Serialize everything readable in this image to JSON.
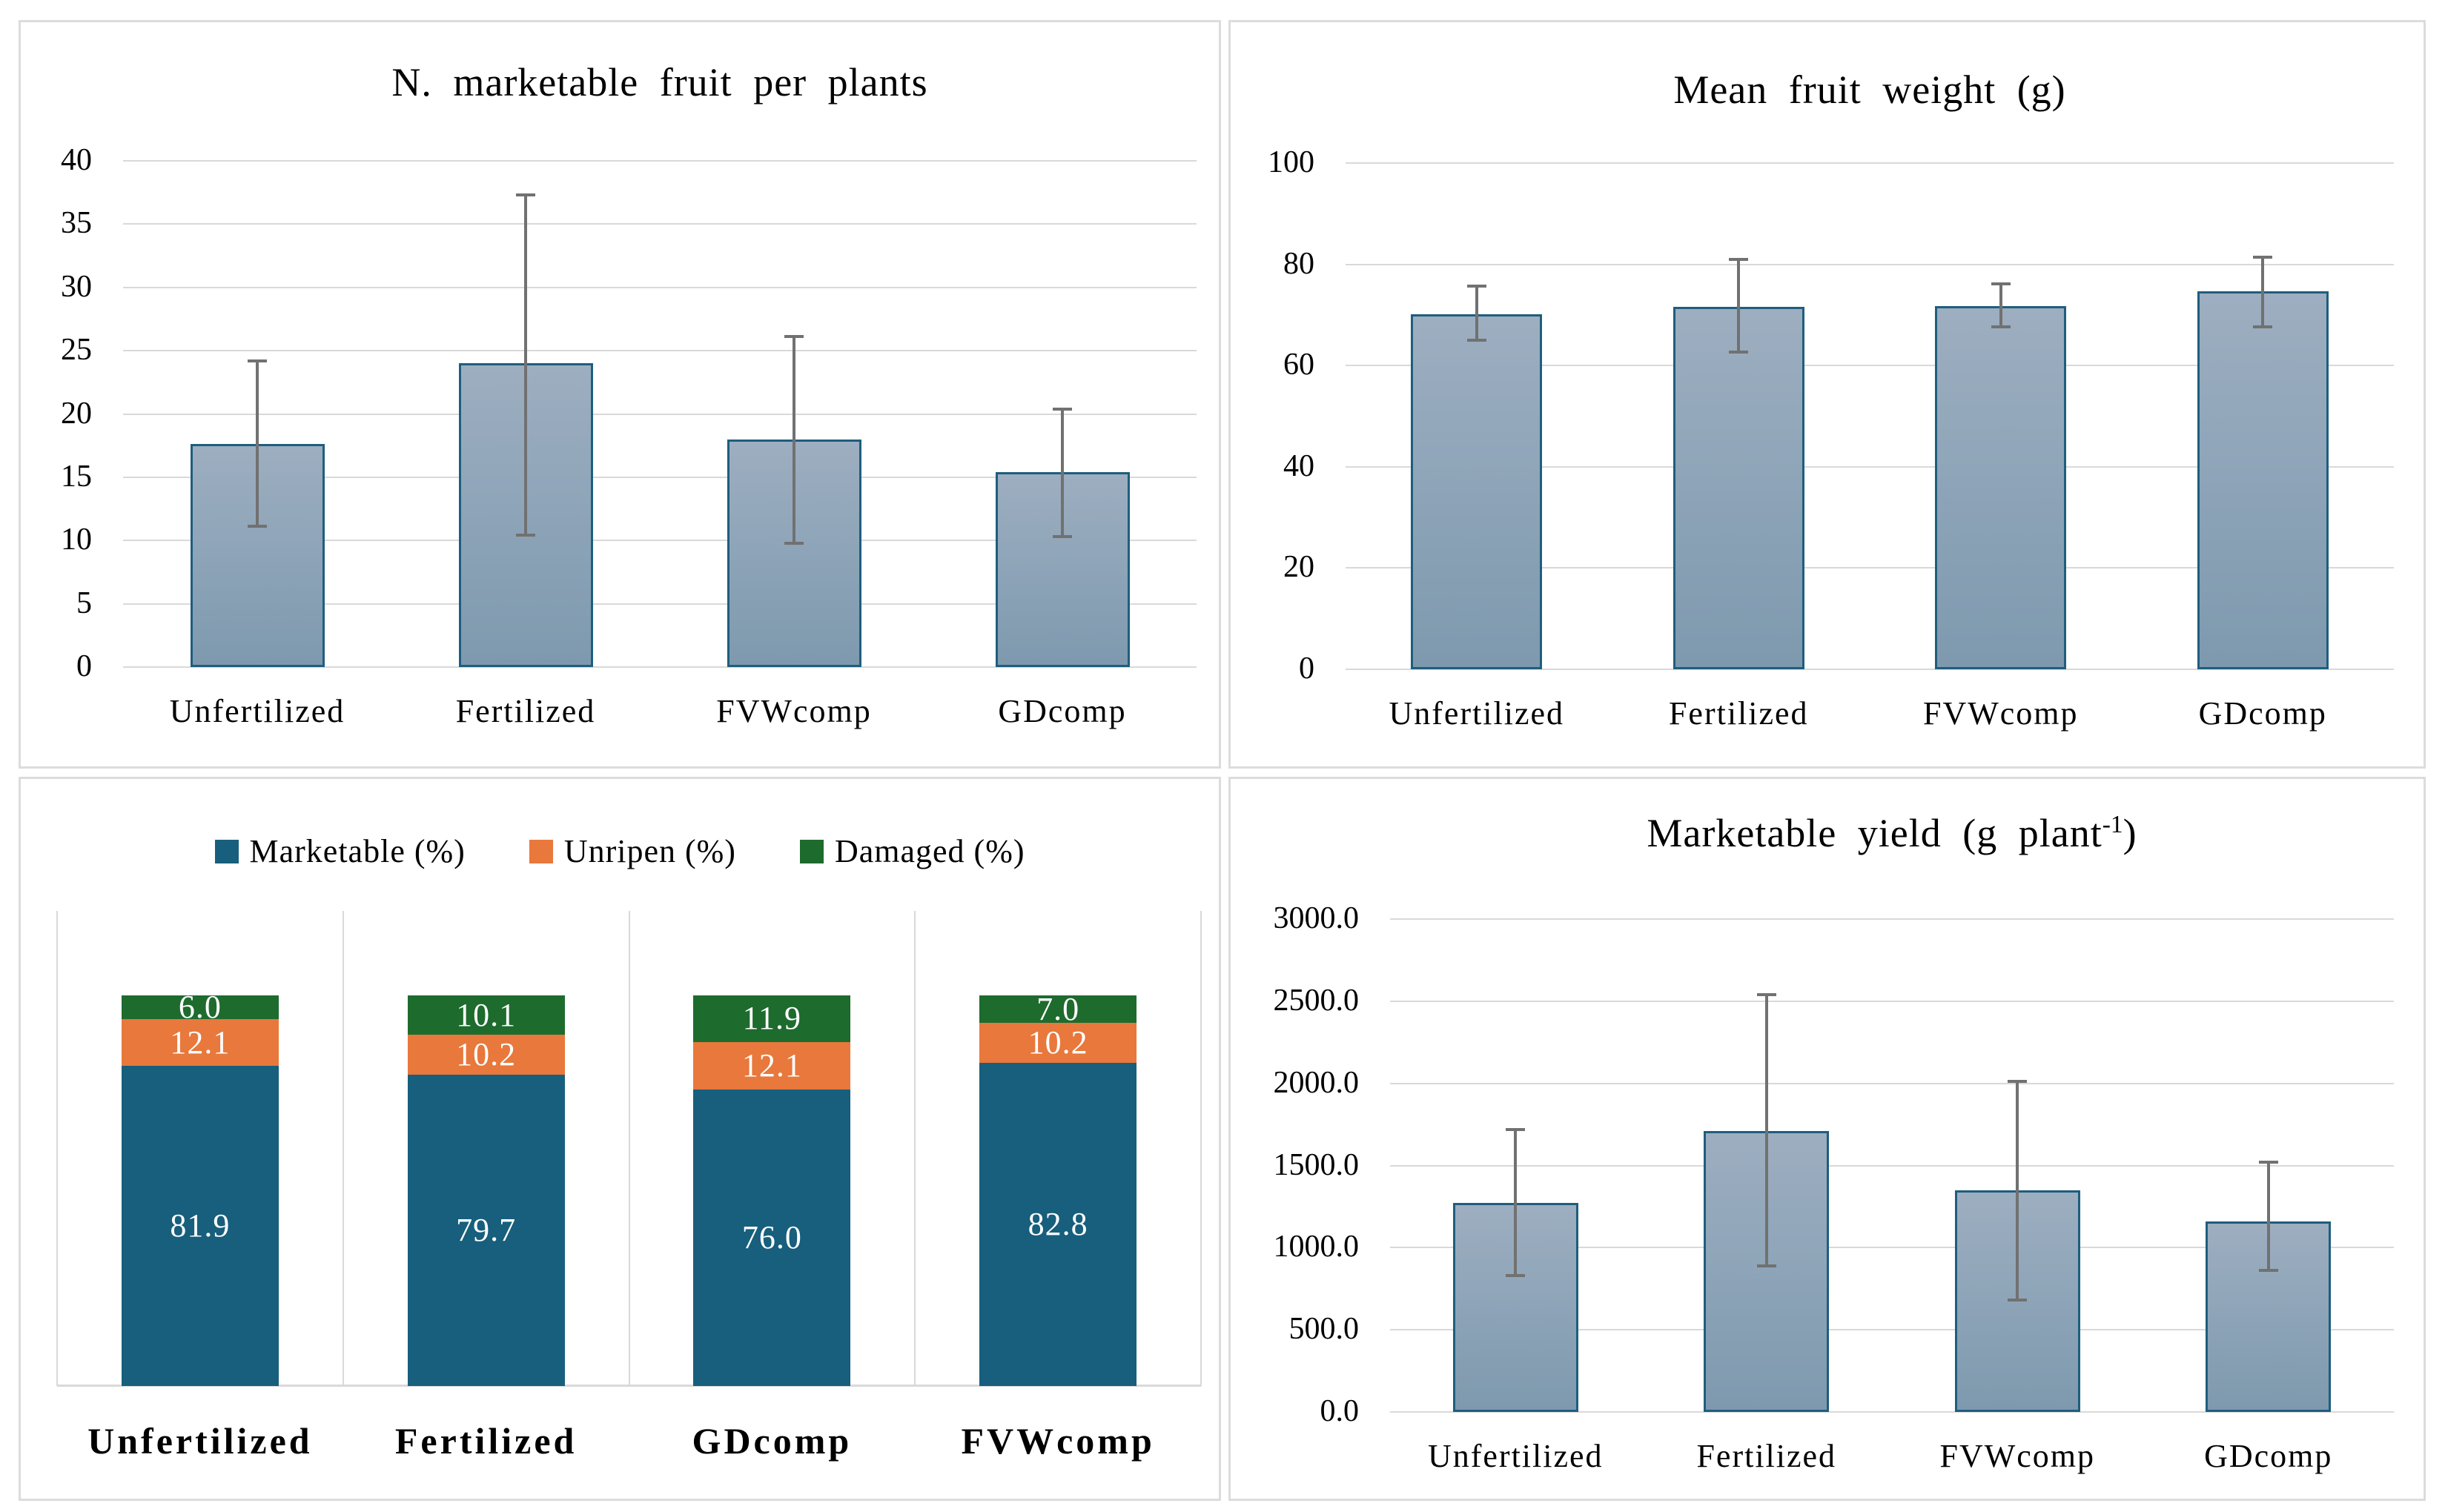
{
  "figure": {
    "background": "#FFFFFF",
    "panel_border_color": "#DCDCDC"
  },
  "colors": {
    "bar_gradient_top": "#9DAEC0",
    "bar_gradient_bottom": "#7E99AE",
    "bar_border": "#1E5E7E",
    "error_bar": "#717171",
    "gridline": "#D9D9D9",
    "text": "#000000",
    "stacked_marketable": "#175F7C",
    "stacked_unripen": "#E8783C",
    "stacked_damaged": "#1E6B2E"
  },
  "chart_data": [
    {
      "id": "fruit_count",
      "type": "bar",
      "title": "N. marketable fruit per plants",
      "categories": [
        "Unfertilized",
        "Fertilized",
        "FVWcomp",
        "GDcomp"
      ],
      "values": [
        17.6,
        24.0,
        18.0,
        15.4
      ],
      "error_low": [
        11.1,
        10.4,
        9.8,
        10.3
      ],
      "error_high": [
        24.2,
        37.3,
        26.1,
        20.4
      ],
      "ylim": [
        0,
        40
      ],
      "yticks": [
        0,
        5,
        10,
        15,
        20,
        25,
        30,
        35,
        40
      ],
      "ytick_format": "int",
      "grid": true,
      "legend_position": "none",
      "xlabel": "",
      "ylabel": ""
    },
    {
      "id": "fruit_weight",
      "type": "bar",
      "title": "Mean fruit weight (g)",
      "categories": [
        "Unfertilized",
        "Fertilized",
        "FVWcomp",
        "GDcomp"
      ],
      "values": [
        70.2,
        71.6,
        71.8,
        74.7
      ],
      "error_low": [
        65.0,
        62.7,
        67.6,
        67.6
      ],
      "error_high": [
        75.7,
        81.0,
        76.2,
        81.4
      ],
      "ylim": [
        0,
        100
      ],
      "yticks": [
        0,
        20,
        40,
        60,
        80,
        100
      ],
      "ytick_format": "int",
      "grid": true,
      "legend_position": "none",
      "xlabel": "",
      "ylabel": ""
    },
    {
      "id": "fruit_quality_fractions",
      "type": "stacked_bar_100",
      "title": "",
      "categories": [
        "Unfertilized",
        "Fertilized",
        "GDcomp",
        "FVWcomp"
      ],
      "series": [
        {
          "name": "Marketable (%)",
          "color": "#175F7C",
          "values": [
            81.9,
            79.7,
            76.0,
            82.8
          ]
        },
        {
          "name": "Unripen (%)",
          "color": "#E8783C",
          "values": [
            12.1,
            10.2,
            12.1,
            10.2
          ]
        },
        {
          "name": "Damaged (%)",
          "color": "#1E6B2E",
          "values": [
            6.0,
            10.1,
            11.9,
            7.0
          ]
        }
      ],
      "bar_total_height_fraction": 0.822,
      "value_label_decimals": 1,
      "grid": "category-separators",
      "legend_position": "top",
      "xlabel": "",
      "ylabel": ""
    },
    {
      "id": "marketable_yield",
      "type": "bar",
      "title": "Marketable yield (g plant⁻¹)",
      "title_parts": {
        "before": "Marketable yield (g plant",
        "sup": "-1",
        "after": ")"
      },
      "categories": [
        "Unfertilized",
        "Fertilized",
        "FVWcomp",
        "GDcomp"
      ],
      "values": [
        1270,
        1710,
        1350,
        1160
      ],
      "error_low": [
        830,
        890,
        680,
        860
      ],
      "error_high": [
        1720,
        2540,
        2010,
        1520
      ],
      "ylim": [
        0,
        3000
      ],
      "yticks": [
        0,
        500,
        1000,
        1500,
        2000,
        2500,
        3000
      ],
      "ytick_format": "one_decimal",
      "grid": true,
      "legend_position": "none",
      "xlabel": "",
      "ylabel": ""
    }
  ]
}
